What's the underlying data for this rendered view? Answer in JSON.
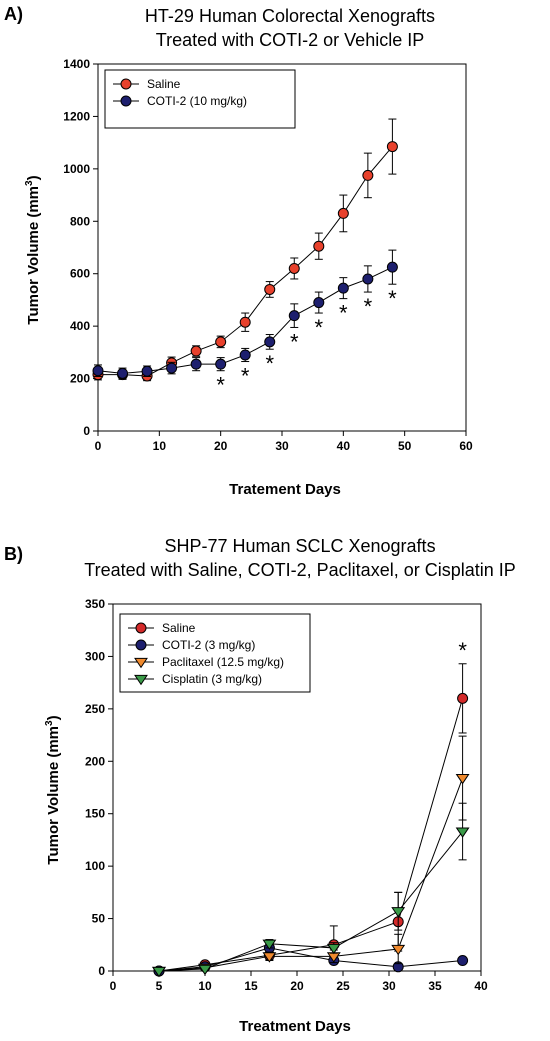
{
  "chart_data": [
    {
      "panel_label": "A)",
      "type": "line",
      "title": "HT-29 Human Colorectal Xenografts",
      "subtitle": "Treated with COTI-2 or Vehicle IP",
      "xlabel": "Tratement Days",
      "ylabel": "Tumor Volume (mm",
      "ylabel_sup": "3",
      "ylabel_close": ")",
      "xlim": [
        0,
        60
      ],
      "ylim": [
        0,
        1400
      ],
      "xticks": [
        0,
        10,
        20,
        30,
        40,
        50,
        60
      ],
      "yticks": [
        0,
        200,
        400,
        600,
        800,
        1000,
        1200,
        1400
      ],
      "grid": false,
      "legend_position": "top-left",
      "x": [
        0,
        4,
        8,
        12,
        16,
        20,
        24,
        28,
        32,
        36,
        40,
        44,
        48
      ],
      "series": [
        {
          "name": "Saline",
          "marker": "circle",
          "color": "#e8412c",
          "values": [
            215,
            215,
            210,
            260,
            305,
            340,
            415,
            540,
            620,
            705,
            830,
            975,
            1085
          ],
          "errors": [
            20,
            18,
            18,
            22,
            20,
            22,
            35,
            30,
            40,
            50,
            70,
            85,
            105
          ]
        },
        {
          "name": "COTI-2 (10 mg/kg)",
          "marker": "circle",
          "color": "#1d1f6e",
          "values": [
            230,
            220,
            228,
            240,
            255,
            255,
            290,
            340,
            440,
            490,
            545,
            580,
            625
          ],
          "errors": [
            22,
            20,
            20,
            22,
            25,
            25,
            25,
            28,
            45,
            40,
            40,
            50,
            65
          ]
        }
      ],
      "significance": {
        "symbol": "*",
        "x": [
          20,
          24,
          28,
          32,
          36,
          40,
          44,
          48
        ]
      }
    },
    {
      "panel_label": "B)",
      "type": "line",
      "title": "SHP-77 Human SCLC Xenografts",
      "subtitle": "Treated with Saline, COTI-2, Paclitaxel, or Cisplatin IP",
      "xlabel": "Treatment Days",
      "ylabel": "Tumor Volume (mm",
      "ylabel_sup": "3",
      "ylabel_close": ")",
      "xlim": [
        0,
        40
      ],
      "ylim": [
        0,
        350
      ],
      "xticks": [
        0,
        5,
        10,
        15,
        20,
        25,
        30,
        35,
        40
      ],
      "yticks": [
        0,
        50,
        100,
        150,
        200,
        250,
        300,
        350
      ],
      "grid": false,
      "legend_position": "top-left",
      "x": [
        5,
        10,
        17,
        24,
        31,
        38
      ],
      "series": [
        {
          "name": "Saline",
          "marker": "circle",
          "color": "#d42a2a",
          "values": [
            0,
            6,
            15,
            25,
            47,
            260
          ],
          "errors": [
            1,
            2,
            4,
            18,
            28,
            33
          ]
        },
        {
          "name": "COTI-2  (3 mg/kg)",
          "marker": "circle",
          "color": "#1d1f6e",
          "values": [
            0,
            4,
            22,
            10,
            4,
            10
          ],
          "errors": [
            1,
            2,
            3,
            3,
            2,
            2
          ]
        },
        {
          "name": "Paclitaxel (12.5 mg/kg)",
          "marker": "triangle-down",
          "color": "#f08a2e",
          "values": [
            0,
            3,
            14,
            14,
            21,
            184
          ],
          "errors": [
            1,
            2,
            4,
            6,
            14,
            40
          ]
        },
        {
          "name": "Cisplatin (3 mg/kg)",
          "marker": "triangle-down",
          "color": "#3a9a48",
          "values": [
            0,
            2,
            26,
            22,
            57,
            133
          ],
          "errors": [
            1,
            2,
            4,
            5,
            18,
            27
          ]
        }
      ],
      "significance": {
        "symbol": "*",
        "x": [
          38
        ]
      }
    }
  ]
}
